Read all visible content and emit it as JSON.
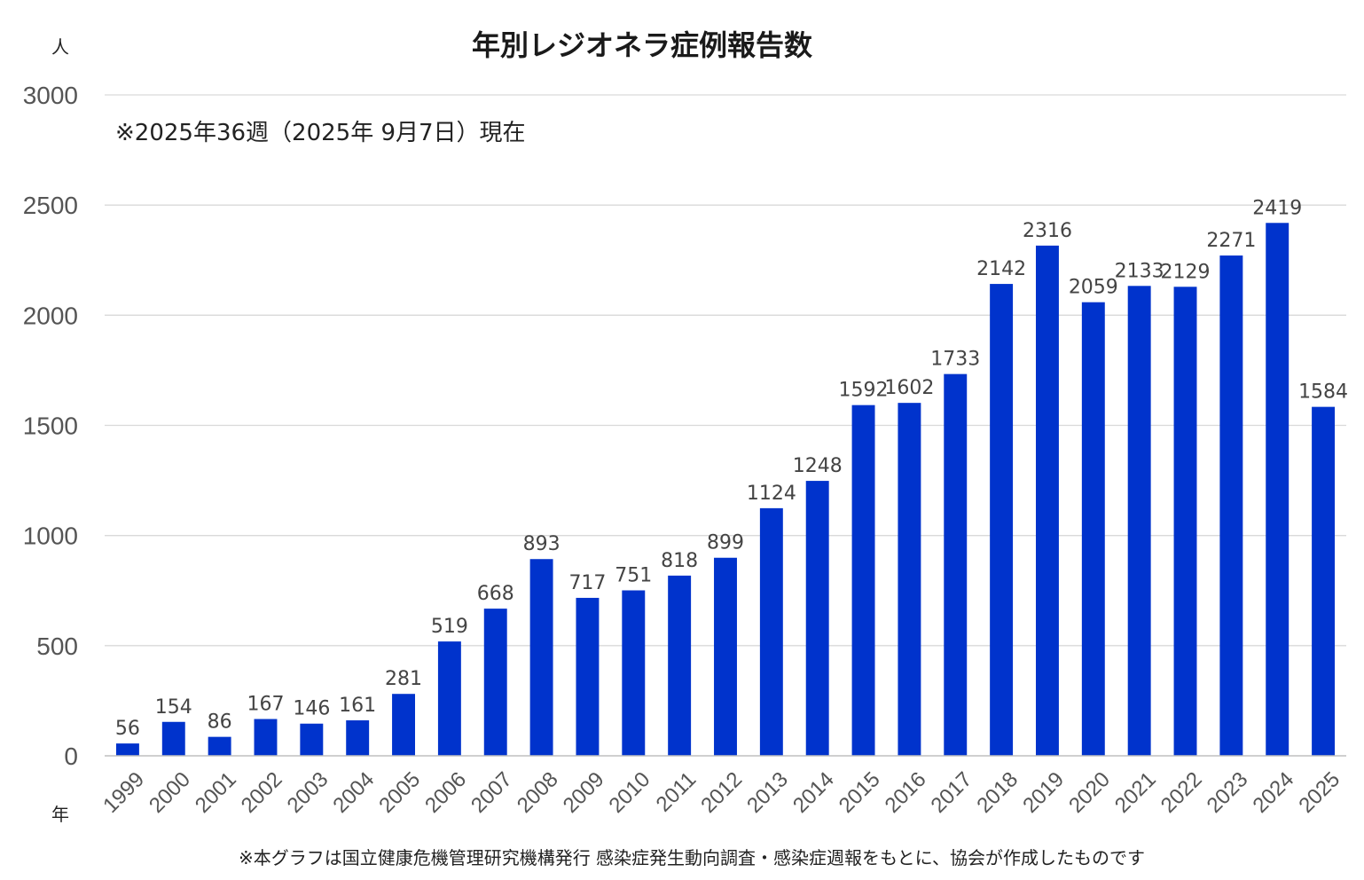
{
  "chart_data": {
    "type": "bar",
    "title": "年別レジオネラ症例報告数",
    "subtitle": "※2025年36週（2025年 9月7日）現在",
    "ylabel": "人",
    "xlabel": "年",
    "ylim": [
      0,
      3000
    ],
    "yticks": [
      0,
      500,
      1000,
      1500,
      2000,
      2500,
      3000
    ],
    "grid": true,
    "bar_color": "#0033cc",
    "categories": [
      "1999",
      "2000",
      "2001",
      "2002",
      "2003",
      "2004",
      "2005",
      "2006",
      "2007",
      "2008",
      "2009",
      "2010",
      "2011",
      "2012",
      "2013",
      "2014",
      "2015",
      "2016",
      "2017",
      "2018",
      "2019",
      "2020",
      "2021",
      "2022",
      "2023",
      "2024",
      "2025"
    ],
    "values": [
      56,
      154,
      86,
      167,
      146,
      161,
      281,
      519,
      668,
      893,
      717,
      751,
      818,
      899,
      1124,
      1248,
      1592,
      1602,
      1733,
      2142,
      2316,
      2059,
      2133,
      2129,
      2271,
      2419,
      1584
    ],
    "footnote": "※本グラフは国立健康危機管理研究機構発行 感染症発生動向調査・感染症週報をもとに、協会が作成したものです"
  }
}
